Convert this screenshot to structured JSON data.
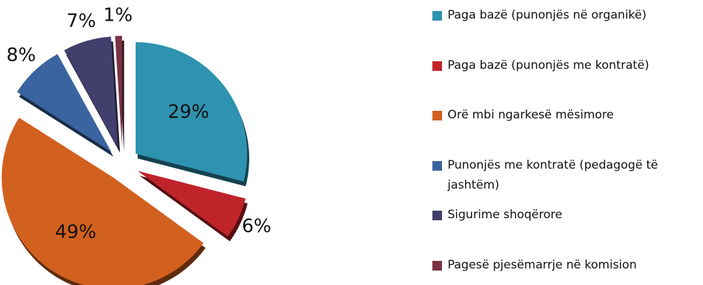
{
  "chart_data": {
    "type": "pie",
    "categories": [
      "Paga bazë (punonjës në organikë)",
      "Paga bazë (punonjës me kontratë)",
      "Orë mbi ngarkesë mësimore",
      "Punonjës me kontratë (pedagogë të jashtëm)",
      "Sigurime shoqërore",
      "Pagesë pjesëmarrje në komision"
    ],
    "values": [
      29,
      6,
      49,
      8,
      7,
      1
    ],
    "value_labels": [
      "29%",
      "6%",
      "49%",
      "8%",
      "7%",
      "1%"
    ],
    "colors": [
      "#2e93b0",
      "#c0242b",
      "#d2601f",
      "#3a64a0",
      "#433f6c",
      "#7a3344"
    ],
    "legend": "right"
  }
}
